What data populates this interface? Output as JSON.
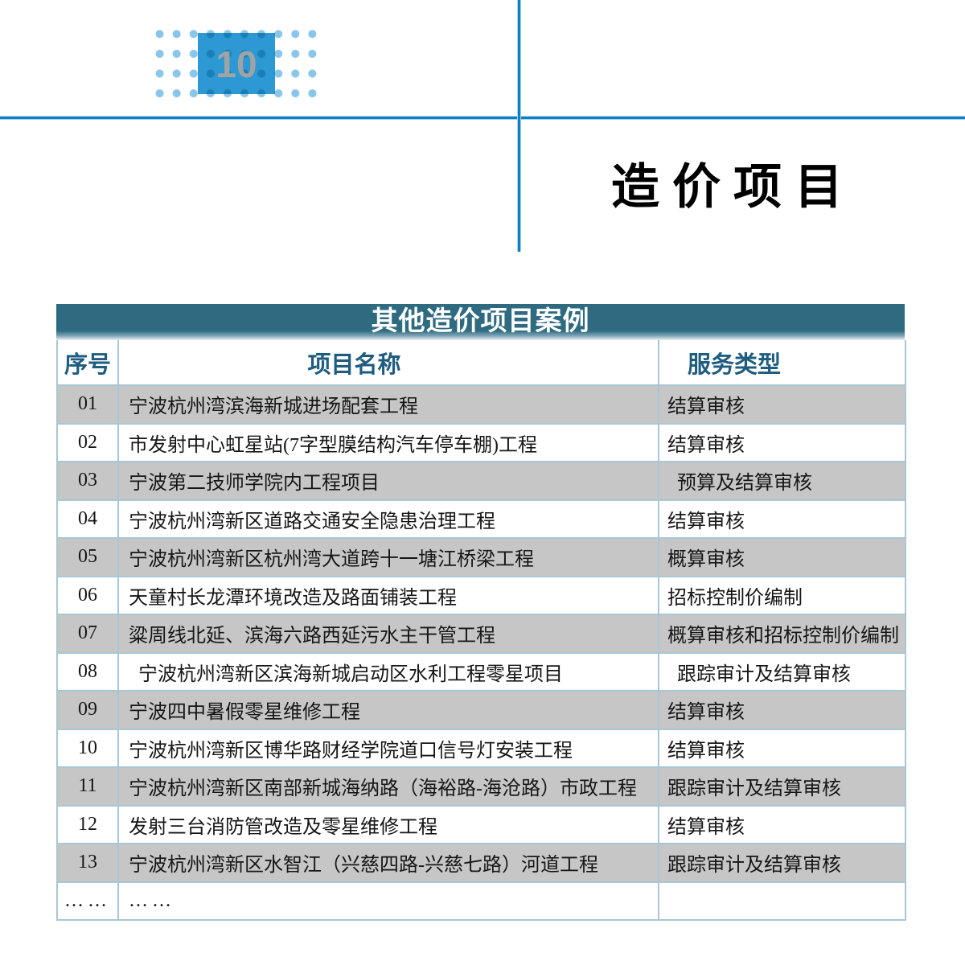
{
  "page": {
    "number": "10",
    "heading": "造价项目"
  },
  "table": {
    "title": "其他造价项目案例",
    "columns": {
      "no": "序号",
      "name": "项目名称",
      "service": "服务类型"
    },
    "rows": [
      {
        "no": "01",
        "name": "宁波杭州湾滨海新城进场配套工程",
        "service": "结算审核"
      },
      {
        "no": "02",
        "name": "市发射中心虹星站(7字型膜结构汽车停车棚)工程",
        "service": "结算审核"
      },
      {
        "no": "03",
        "name": "宁波第二技师学院内工程项目",
        "service": "  预算及结算审核"
      },
      {
        "no": "04",
        "name": "宁波杭州湾新区道路交通安全隐患治理工程",
        "service": "结算审核"
      },
      {
        "no": "05",
        "name": "宁波杭州湾新区杭州湾大道跨十一塘江桥梁工程",
        "service": "概算审核"
      },
      {
        "no": "06",
        "name": "天童村长龙潭环境改造及路面铺装工程",
        "service": "招标控制价编制"
      },
      {
        "no": "07",
        "name": "粱周线北延、滨海六路西延污水主干管工程",
        "service": "概算审核和招标控制价编制"
      },
      {
        "no": "08",
        "name": "  宁波杭州湾新区滨海新城启动区水利工程零星项目",
        "service": "  跟踪审计及结算审核"
      },
      {
        "no": "09",
        "name": "宁波四中暑假零星维修工程",
        "service": "结算审核"
      },
      {
        "no": "10",
        "name": "宁波杭州湾新区博华路财经学院道口信号灯安装工程",
        "service": "结算审核"
      },
      {
        "no": "11",
        "name": "宁波杭州湾新区南部新城海纳路（海裕路-海沧路）市政工程",
        "service": "跟踪审计及结算审核"
      },
      {
        "no": "12",
        "name": "发射三台消防管改造及零星维修工程",
        "service": "结算审核"
      },
      {
        "no": "13",
        "name": "宁波杭州湾新区水智江（兴慈四路-兴慈七路）河道工程",
        "service": "跟踪审计及结算审核"
      },
      {
        "no": "……",
        "name": "……",
        "service": "",
        "dots": true
      }
    ]
  },
  "colors": {
    "accent_blue": "#0e7fc3",
    "page_box_blue": "#2c99d4",
    "dot_blue": "#8ac6ea",
    "header_teal": "#2e6a80",
    "header_text": "#1e5c80",
    "row_gray": "#c6c6c6",
    "grid_line": "#a9c6d4"
  }
}
